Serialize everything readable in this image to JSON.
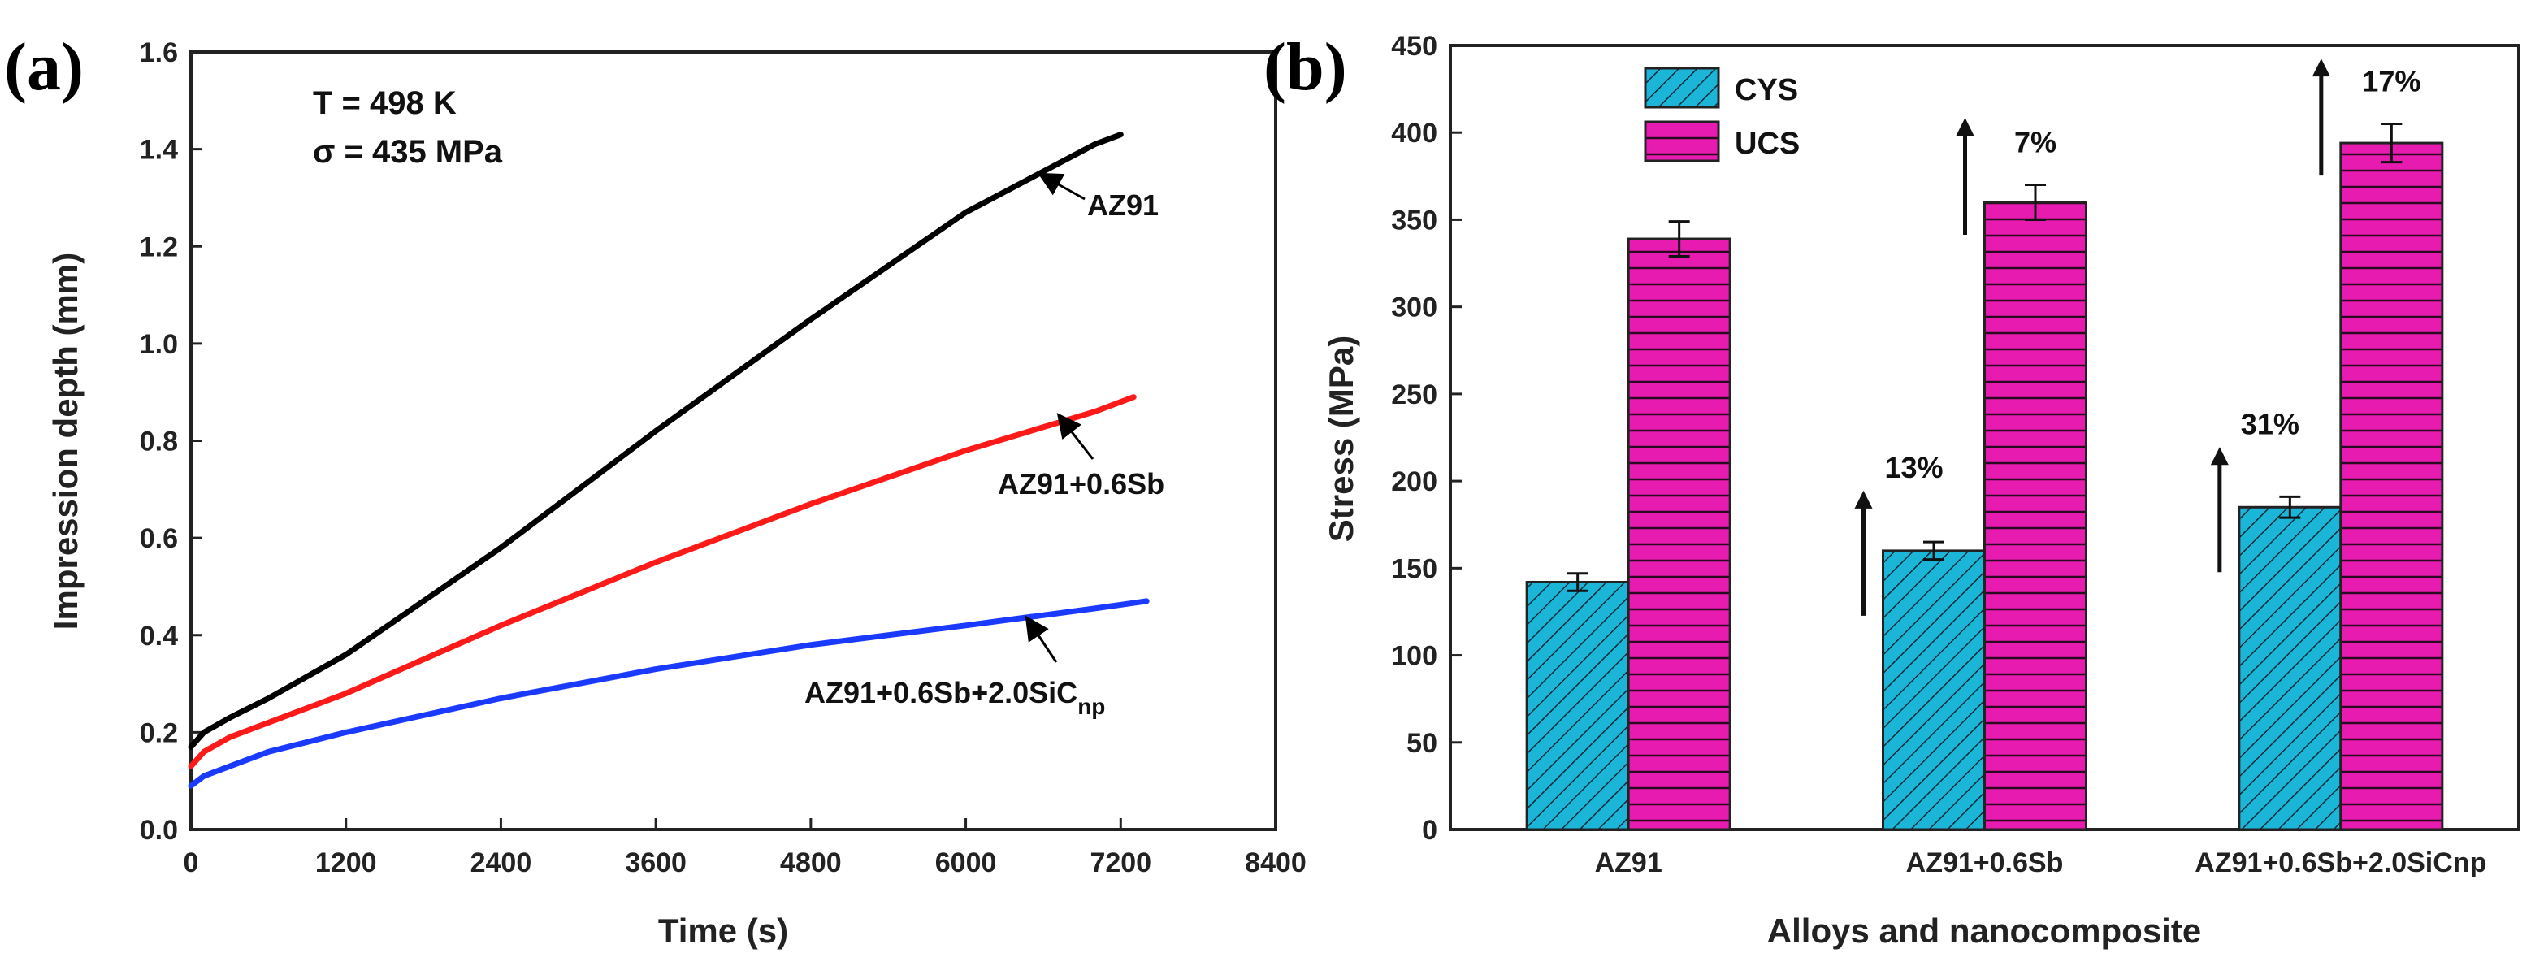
{
  "chart_data": [
    {
      "panel": "(a)",
      "type": "line",
      "xlabel": "Time (s)",
      "ylabel": "Impression depth (mm)",
      "xlim": [
        0,
        8400
      ],
      "ylim": [
        0,
        1.6
      ],
      "xticks": [
        "0",
        "1200",
        "2400",
        "3600",
        "4800",
        "6000",
        "7200",
        "8400"
      ],
      "yticks": [
        "0.0",
        "0.2",
        "0.4",
        "0.6",
        "0.8",
        "1.0",
        "1.2",
        "1.4",
        "1.6"
      ],
      "annotation_lines": [
        "T = 498 K",
        "σ = 435 MPa"
      ],
      "series": [
        {
          "name": "AZ91",
          "color": "#000000",
          "x": [
            0,
            100,
            300,
            600,
            1200,
            2400,
            3600,
            4800,
            6000,
            7000,
            7200
          ],
          "y": [
            0.17,
            0.2,
            0.23,
            0.27,
            0.36,
            0.58,
            0.82,
            1.05,
            1.27,
            1.41,
            1.43
          ]
        },
        {
          "name": "AZ91+0.6Sb",
          "color": "#ff1a1a",
          "x": [
            0,
            100,
            300,
            600,
            1200,
            2400,
            3600,
            4800,
            6000,
            7000,
            7300
          ],
          "y": [
            0.13,
            0.16,
            0.19,
            0.22,
            0.28,
            0.42,
            0.55,
            0.67,
            0.78,
            0.86,
            0.89
          ]
        },
        {
          "name": "AZ91+0.6Sb+2.0SiC",
          "subscript": "np",
          "color": "#1a3aff",
          "x": [
            0,
            100,
            300,
            600,
            1200,
            2400,
            3600,
            4800,
            6000,
            7000,
            7400
          ],
          "y": [
            0.09,
            0.11,
            0.13,
            0.16,
            0.2,
            0.27,
            0.33,
            0.38,
            0.42,
            0.455,
            0.47
          ]
        }
      ]
    },
    {
      "panel": "(b)",
      "type": "bar",
      "xlabel": "Alloys and nanocomposite",
      "ylabel": "Stress (MPa)",
      "ylim": [
        0,
        450
      ],
      "yticks": [
        "0",
        "50",
        "100",
        "150",
        "200",
        "250",
        "300",
        "350",
        "400",
        "450"
      ],
      "categories": [
        "AZ91",
        "AZ91+0.6Sb",
        "AZ91+0.6Sb+2.0SiCnp"
      ],
      "series": [
        {
          "name": "CYS",
          "color": "#1bb5d8",
          "values": [
            142,
            160,
            185
          ],
          "errors": [
            5,
            5,
            6
          ]
        },
        {
          "name": "UCS",
          "color": "#e81bb0",
          "values": [
            339,
            360,
            394
          ],
          "errors": [
            10,
            10,
            11
          ]
        }
      ],
      "increase_labels": {
        "CYS": [
          "",
          "13%",
          "31%"
        ],
        "UCS": [
          "",
          "7%",
          "17%"
        ]
      }
    }
  ]
}
